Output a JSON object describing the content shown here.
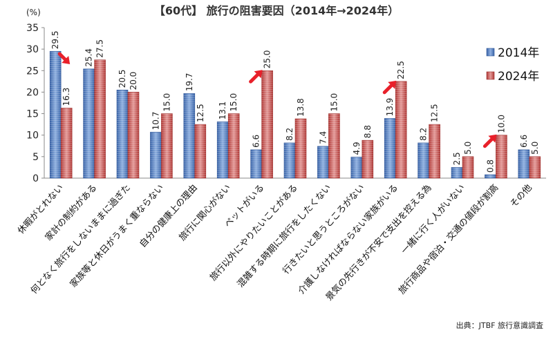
{
  "title": "【60代】 旅行の阻害要因（2014年→2024年）",
  "source": "出典：JTBF 旅行意識調査",
  "chart_data": {
    "type": "bar",
    "title": "【60代】 旅行の阻害要因（2014年→2024年）",
    "ylabel": "(%)",
    "ylim": [
      0,
      35
    ],
    "yticks": [
      0,
      5,
      10,
      15,
      20,
      25,
      30,
      35
    ],
    "grid": false,
    "legend_position": "top-right",
    "categories": [
      "休暇がとれない",
      "家計の制約がある",
      "何となく旅行をしないままに過ぎた",
      "家族等と休日がうまく重ならない",
      "自分の健康上の理由",
      "旅行に関心がない",
      "ペットがいる",
      "旅行以外にやりたいことがある",
      "混雑する時期に旅行をしたくない",
      "行きたいと思うところがない",
      "介護しなければならない家族がいる",
      "景気の先行きが不安で支出を控える為",
      "一緒に行く人がいない",
      "旅行商品や宿泊・交通の値段が割高",
      "その他"
    ],
    "series": [
      {
        "name": "2014年",
        "color": "#4a74b8",
        "values": [
          29.5,
          25.4,
          20.5,
          10.7,
          19.7,
          13.1,
          6.6,
          8.2,
          7.4,
          4.9,
          13.9,
          8.2,
          2.5,
          0.8,
          6.6
        ]
      },
      {
        "name": "2024年",
        "color": "#c0504d",
        "values": [
          16.3,
          27.5,
          20.0,
          15.0,
          12.5,
          15.0,
          25.0,
          13.8,
          15.0,
          8.8,
          22.5,
          12.5,
          5.0,
          10.0,
          5.0
        ]
      }
    ],
    "annotations": [
      {
        "category": "休暇がとれない",
        "icon": "arrow-down-icon",
        "color": "#e8202a"
      },
      {
        "category": "ペットがいる",
        "icon": "arrow-up-icon",
        "color": "#e8202a"
      },
      {
        "category": "介護しなければならない家族がいる",
        "icon": "arrow-up-icon",
        "color": "#e8202a"
      },
      {
        "category": "旅行商品や宿泊・交通の値段が割高",
        "icon": "arrow-up-icon",
        "color": "#e8202a"
      }
    ]
  }
}
